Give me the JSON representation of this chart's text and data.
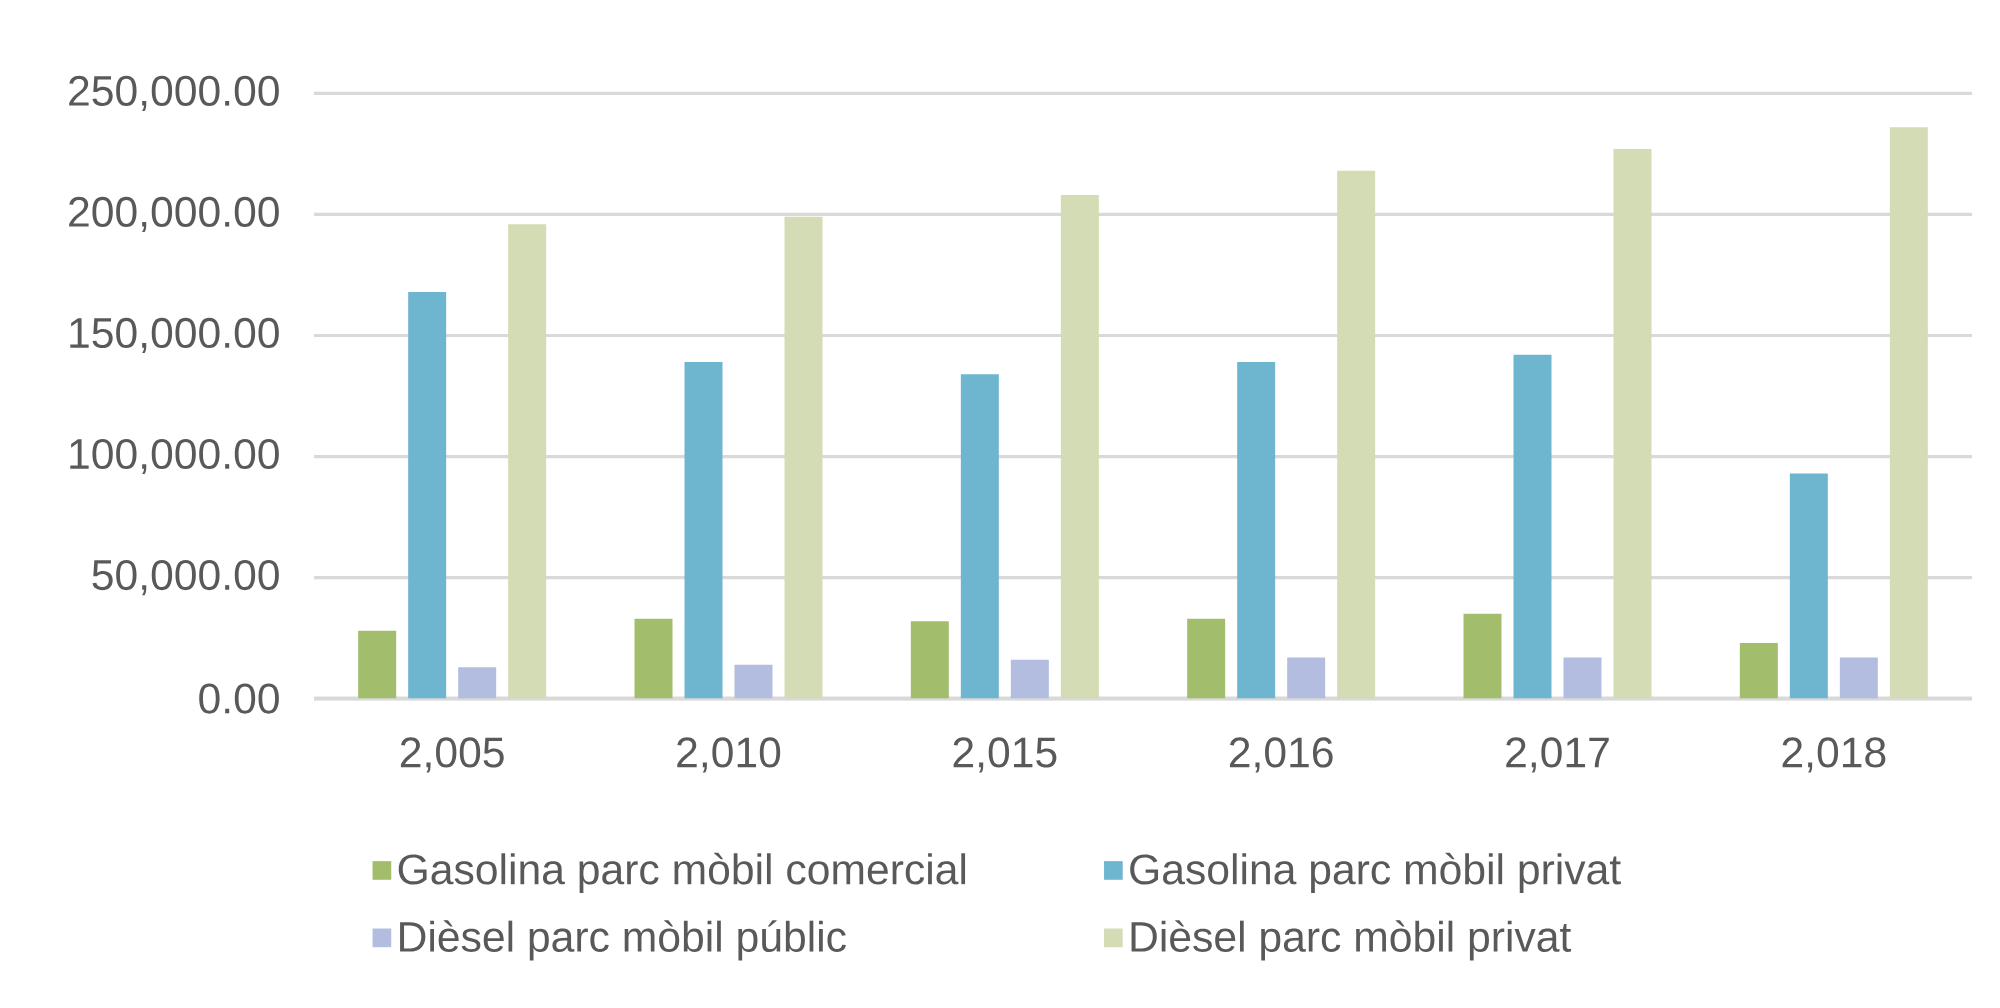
{
  "chart_data": {
    "type": "bar",
    "categories": [
      "2,005",
      "2,010",
      "2,015",
      "2,016",
      "2,017",
      "2,018"
    ],
    "series": [
      {
        "name": "Gasolina parc mòbil comercial",
        "color": "#a2be6c",
        "values": [
          28000,
          33000,
          32000,
          33000,
          35000,
          23000
        ]
      },
      {
        "name": "Gasolina parc mòbil privat",
        "color": "#6eb5d0",
        "values": [
          168000,
          139000,
          134000,
          139000,
          142000,
          93000
        ]
      },
      {
        "name": "Dièsel parc mòbil públic",
        "color": "#b3bde0",
        "values": [
          13000,
          14000,
          16000,
          17000,
          17000,
          17000
        ]
      },
      {
        "name": "Dièsel parc mòbil privat",
        "color": "#d3dcb5",
        "values": [
          196000,
          199000,
          208000,
          218000,
          227000,
          236000
        ]
      }
    ],
    "ylim": [
      0,
      250000
    ],
    "yticks": [
      {
        "value": 0,
        "label": "0.00"
      },
      {
        "value": 50000,
        "label": "50,000.00"
      },
      {
        "value": 100000,
        "label": "100,000.00"
      },
      {
        "value": 150000,
        "label": "150,000.00"
      },
      {
        "value": 200000,
        "label": "200,000.00"
      },
      {
        "value": 250000,
        "label": "250,000.00"
      }
    ],
    "grid": "y",
    "legend": "bottom"
  }
}
